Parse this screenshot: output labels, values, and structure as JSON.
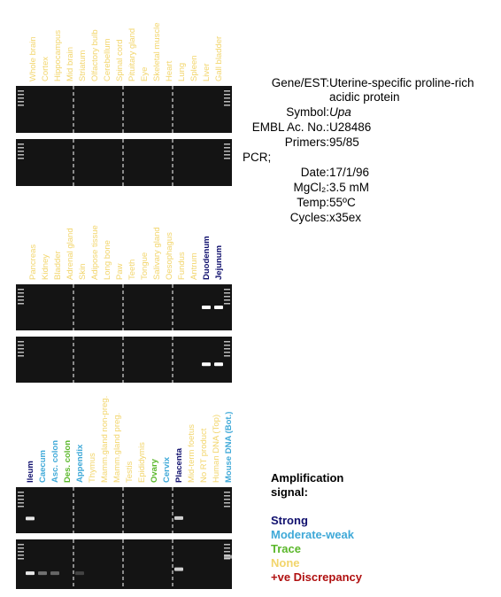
{
  "panels": [
    {
      "lanes": [
        {
          "label": "Whole brain",
          "color": "#f2d56b"
        },
        {
          "label": "Cortex",
          "color": "#f2d56b"
        },
        {
          "label": "Hippocampus",
          "color": "#f2d56b"
        },
        {
          "label": "Mid brain",
          "color": "#f2d56b"
        },
        {
          "label": "Striatum",
          "color": "#f2d56b"
        },
        {
          "label": "Olfactory bulb",
          "color": "#f2d56b"
        },
        {
          "label": "Cerebellum",
          "color": "#f2d56b"
        },
        {
          "label": "Spinal cord",
          "color": "#f2d56b"
        },
        {
          "label": "Pituitary gland",
          "color": "#f2d56b"
        },
        {
          "label": "Eye",
          "color": "#f2d56b"
        },
        {
          "label": "Skeletal muscle",
          "color": "#f2d56b"
        },
        {
          "label": "Heart",
          "color": "#f2d56b"
        },
        {
          "label": "Lung",
          "color": "#f2d56b"
        },
        {
          "label": "Spleen",
          "color": "#f2d56b"
        },
        {
          "label": "Liver",
          "color": "#f2d56b"
        },
        {
          "label": "Gall bladder",
          "color": "#f2d56b"
        }
      ]
    },
    {
      "lanes": [
        {
          "label": "Pancreas",
          "color": "#f2d56b"
        },
        {
          "label": "Kidney",
          "color": "#f2d56b"
        },
        {
          "label": "Bladder",
          "color": "#f2d56b"
        },
        {
          "label": "Adrenal gland",
          "color": "#f2d56b"
        },
        {
          "label": "Skin",
          "color": "#f2d56b"
        },
        {
          "label": "Adipose tissue",
          "color": "#f2d56b"
        },
        {
          "label": "Long bone",
          "color": "#f2d56b"
        },
        {
          "label": "Paw",
          "color": "#f2d56b"
        },
        {
          "label": "Teeth",
          "color": "#f2d56b"
        },
        {
          "label": "Tongue",
          "color": "#f2d56b"
        },
        {
          "label": "Salivary gland",
          "color": "#f2d56b"
        },
        {
          "label": "Oesophagus",
          "color": "#f2d56b"
        },
        {
          "label": "Fundus",
          "color": "#f2d56b"
        },
        {
          "label": "Antrum",
          "color": "#f2d56b"
        },
        {
          "label": "Duodenum",
          "color": "#10106e"
        },
        {
          "label": "Jejunum",
          "color": "#10106e"
        }
      ]
    },
    {
      "lanes": [
        {
          "label": "Ileum",
          "color": "#10106e"
        },
        {
          "label": "Caecum",
          "color": "#3fa9d8"
        },
        {
          "label": "Asc. colon",
          "color": "#3fa9d8"
        },
        {
          "label": "Des. colon",
          "color": "#5ab72a"
        },
        {
          "label": "Appendix",
          "color": "#3fa9d8"
        },
        {
          "label": "Thymus",
          "color": "#f2d56b"
        },
        {
          "label": "Mamm.gland non-preg.",
          "color": "#f2d56b"
        },
        {
          "label": "Mamm.gland preg.",
          "color": "#f2d56b"
        },
        {
          "label": "Testis",
          "color": "#f2d56b"
        },
        {
          "label": "Epididymis",
          "color": "#f2d56b"
        },
        {
          "label": "Ovary",
          "color": "#5ab72a"
        },
        {
          "label": "Cervix",
          "color": "#3fa9d8"
        },
        {
          "label": "Placenta",
          "color": "#10106e"
        },
        {
          "label": "Mid-term foetus",
          "color": "#f2d56b"
        },
        {
          "label": "No RT product",
          "color": "#f2d56b"
        },
        {
          "label": "Human DNA (Top)",
          "color": "#f2d56b"
        },
        {
          "label": "Mouse DNA (Bot.)",
          "color": "#3fa9d8"
        }
      ]
    }
  ],
  "info": [
    {
      "key": "Gene/EST:",
      "value": "Uterine-specific proline-rich acidic protein"
    },
    {
      "key": "Symbol:",
      "value": "Upa",
      "italic": true
    },
    {
      "key": "EMBL Ac. No.:",
      "value": "U28486"
    },
    {
      "key": "Primers:",
      "value": "95/85"
    },
    {
      "key": "PCR;"
    },
    {
      "key": "Date:",
      "value": "17/1/96"
    },
    {
      "key": "MgCl₂:",
      "value": "3.5 mM"
    },
    {
      "key": "Temp:",
      "value": "55ºC"
    },
    {
      "key": "Cycles:",
      "value": "x35ex"
    }
  ],
  "legend": {
    "title": "Amplification signal:",
    "items": [
      {
        "label": "Strong",
        "color": "#10106e"
      },
      {
        "label": "Moderate-weak",
        "color": "#3fa9d8"
      },
      {
        "label": "Trace",
        "color": "#5ab72a"
      },
      {
        "label": "None",
        "color": "#f2d56b"
      },
      {
        "label": "+ve Discrepancy",
        "color": "#b01010"
      }
    ]
  }
}
